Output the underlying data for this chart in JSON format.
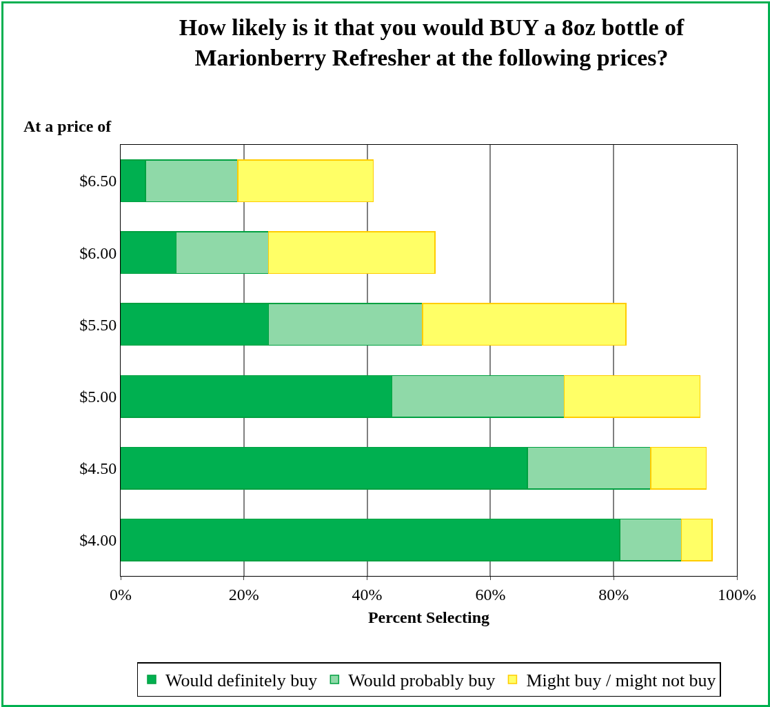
{
  "chart_data": {
    "type": "bar",
    "orientation": "horizontal",
    "stacked": true,
    "title": "How likely is it that you would BUY a 8oz bottle of Marionberry Refresher at the following prices?",
    "xlabel": "Percent Selecting",
    "ylabel": "At a price of",
    "categories": [
      "$6.50",
      "$6.00",
      "$5.50",
      "$5.00",
      "$4.50",
      "$4.00"
    ],
    "series": [
      {
        "name": "Would definitely buy",
        "color": "#00b050",
        "values": [
          4,
          9,
          24,
          44,
          66,
          81
        ]
      },
      {
        "name": "Would probably buy",
        "color": "#8fd9a8",
        "values": [
          15,
          15,
          25,
          28,
          20,
          10
        ]
      },
      {
        "name": "Might buy / might not buy",
        "color": "#ffff66",
        "values": [
          22,
          27,
          33,
          22,
          9,
          5
        ]
      }
    ],
    "xlim": [
      0,
      100
    ],
    "xticks": [
      {
        "value": 0,
        "label": "0%"
      },
      {
        "value": 20,
        "label": "20%"
      },
      {
        "value": 40,
        "label": "40%"
      },
      {
        "value": 60,
        "label": "60%"
      },
      {
        "value": 80,
        "label": "80%"
      },
      {
        "value": 100,
        "label": "100%"
      }
    ],
    "grid": "x",
    "legend": "bottom"
  }
}
